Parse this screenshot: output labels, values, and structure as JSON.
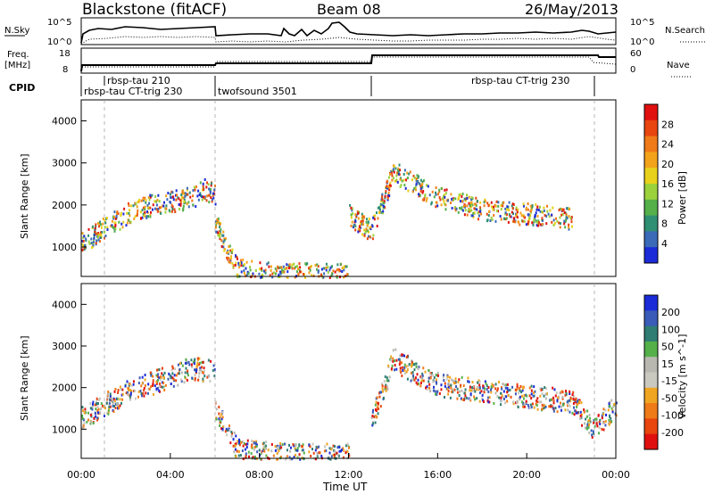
{
  "header": {
    "station": "Blackstone (fitACF)",
    "beam": "Beam 08",
    "date": "26/May/2013"
  },
  "noise_panel": {
    "left_label": "N.Sky",
    "right_label": "N.Search",
    "left_ticks": [
      "10^5",
      "10^0"
    ],
    "right_ticks": [
      "10^5",
      "10^0"
    ]
  },
  "freq_panel": {
    "left_label_line1": "Freq.",
    "left_label_line2": "[MHz]",
    "left_ticks": [
      "18",
      "8"
    ],
    "right_label": "Nave",
    "right_ticks": [
      "60",
      "0"
    ]
  },
  "cpid": {
    "label": "CPID",
    "segments": [
      {
        "name": "rbsp-tau CT-trig 230",
        "start_h": 0.0,
        "end_h": 6.0
      },
      {
        "name": "rbsp-tau 210",
        "start_h": 1.0,
        "end_h": 6.0
      },
      {
        "name": "twofsound 3501",
        "start_h": 6.0,
        "end_h": 13.0
      },
      {
        "name": "rbsp-tau CT-trig 230",
        "start_h": 13.0,
        "end_h": 22.0
      }
    ]
  },
  "colors": {
    "power_scale": [
      "#1c2bd8",
      "#3a6ab8",
      "#2f8f73",
      "#55b04a",
      "#9bd23c",
      "#e8d11a",
      "#f2a31a",
      "#ef7a18",
      "#e8450f",
      "#e01010"
    ],
    "velocity_scale": [
      "#1c2bd8",
      "#3a5bb8",
      "#2f7d73",
      "#55b04a",
      "#b8b8b0",
      "#c9c9c0",
      "#f0a522",
      "#ef7a18",
      "#e8450f",
      "#e01010"
    ]
  },
  "chart_data": [
    {
      "type": "heatmap",
      "panel": "power",
      "ylabel": "Slant Range [km]",
      "y_ticks": [
        "1000",
        "2000",
        "3000",
        "4000"
      ],
      "ylim": [
        300,
        4500
      ],
      "xlim": [
        0,
        24
      ],
      "colorbar": {
        "label": "Power [dB]",
        "tick_labels": [
          "4",
          "8",
          "12",
          "16",
          "20",
          "24",
          "28"
        ]
      },
      "series": [
        {
          "name": "",
          "x": [
            0.0,
            0.5,
            1.0,
            2.0,
            3.0,
            4.0,
            5.0,
            5.5,
            6.0
          ],
          "y": [
            1100,
            1300,
            1500,
            1800,
            2000,
            2100,
            2200,
            2400,
            2300
          ]
        },
        {
          "name": "",
          "x": [
            6.0,
            6.5,
            7.0,
            8.0,
            10.0,
            12.0
          ],
          "y": [
            1600,
            1000,
            500,
            400,
            380,
            380
          ]
        },
        {
          "name": "",
          "x": [
            12.0,
            13.0,
            14.0,
            16.0,
            18.0,
            20.0,
            22.0
          ],
          "y": [
            1800,
            1400,
            2800,
            2200,
            1900,
            1800,
            1700
          ]
        }
      ]
    },
    {
      "type": "heatmap",
      "panel": "velocity",
      "xlabel": "Time UT",
      "ylabel": "Slant Range [km]",
      "x_ticks": [
        "00:00",
        "04:00",
        "08:00",
        "12:00",
        "16:00",
        "20:00",
        "00:00"
      ],
      "y_ticks": [
        "1000",
        "2000",
        "3000",
        "4000"
      ],
      "ylim": [
        300,
        4500
      ],
      "xlim": [
        0,
        24
      ],
      "colorbar": {
        "label": "Velocity [m s^-1]",
        "tick_labels": [
          "200",
          "100",
          "50",
          "15",
          "-15",
          "-50",
          "-100",
          "-200"
        ]
      },
      "series": [
        {
          "name": "",
          "x": [
            0.0,
            1.0,
            2.0,
            3.0,
            4.0,
            5.0,
            6.0
          ],
          "y": [
            1300,
            1600,
            1900,
            2100,
            2300,
            2500,
            2400
          ]
        },
        {
          "name": "",
          "x": [
            6.0,
            6.5,
            7.0,
            10.0,
            12.0
          ],
          "y": [
            1500,
            1100,
            500,
            400,
            400
          ]
        },
        {
          "name": "",
          "x": [
            13.0,
            14.0,
            16.0,
            20.0,
            22.0,
            23.0,
            24.0
          ],
          "y": [
            1200,
            2700,
            2100,
            1800,
            1700,
            1000,
            1600
          ]
        }
      ]
    }
  ]
}
